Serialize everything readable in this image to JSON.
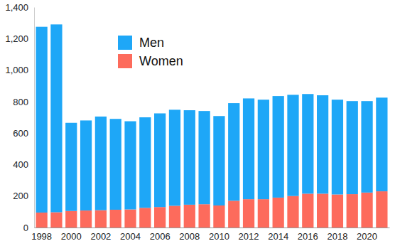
{
  "chart_data": {
    "type": "bar",
    "stacked": true,
    "legend": "upper left",
    "grid": false,
    "categories": [
      1998,
      null,
      2000,
      null,
      2002,
      null,
      2004,
      null,
      2006,
      null,
      2008,
      null,
      2010,
      null,
      2012,
      null,
      2014,
      null,
      2016,
      null,
      2018,
      null,
      2020,
      null
    ],
    "series": [
      {
        "name": "Men",
        "color": "#1ea7f7",
        "values": [
          1180,
          1193,
          560,
          572,
          595,
          577,
          560,
          575,
          595,
          610,
          600,
          592,
          568,
          620,
          640,
          632,
          645,
          643,
          633,
          625,
          602,
          591,
          581,
          595
        ]
      },
      {
        "name": "Women",
        "color": "#fd6b5c",
        "values": [
          95,
          97,
          105,
          108,
          110,
          113,
          115,
          125,
          130,
          138,
          145,
          148,
          140,
          170,
          180,
          180,
          190,
          200,
          215,
          215,
          210,
          212,
          222,
          230
        ]
      }
    ],
    "ylim": [
      0,
      1400
    ],
    "yticks": [
      0,
      200,
      400,
      600,
      800,
      {
        "value": 1000,
        "label": "1,000"
      },
      {
        "value": 1200,
        "label": "1,200"
      },
      {
        "value": 1400,
        "label": "1,400"
      }
    ]
  }
}
